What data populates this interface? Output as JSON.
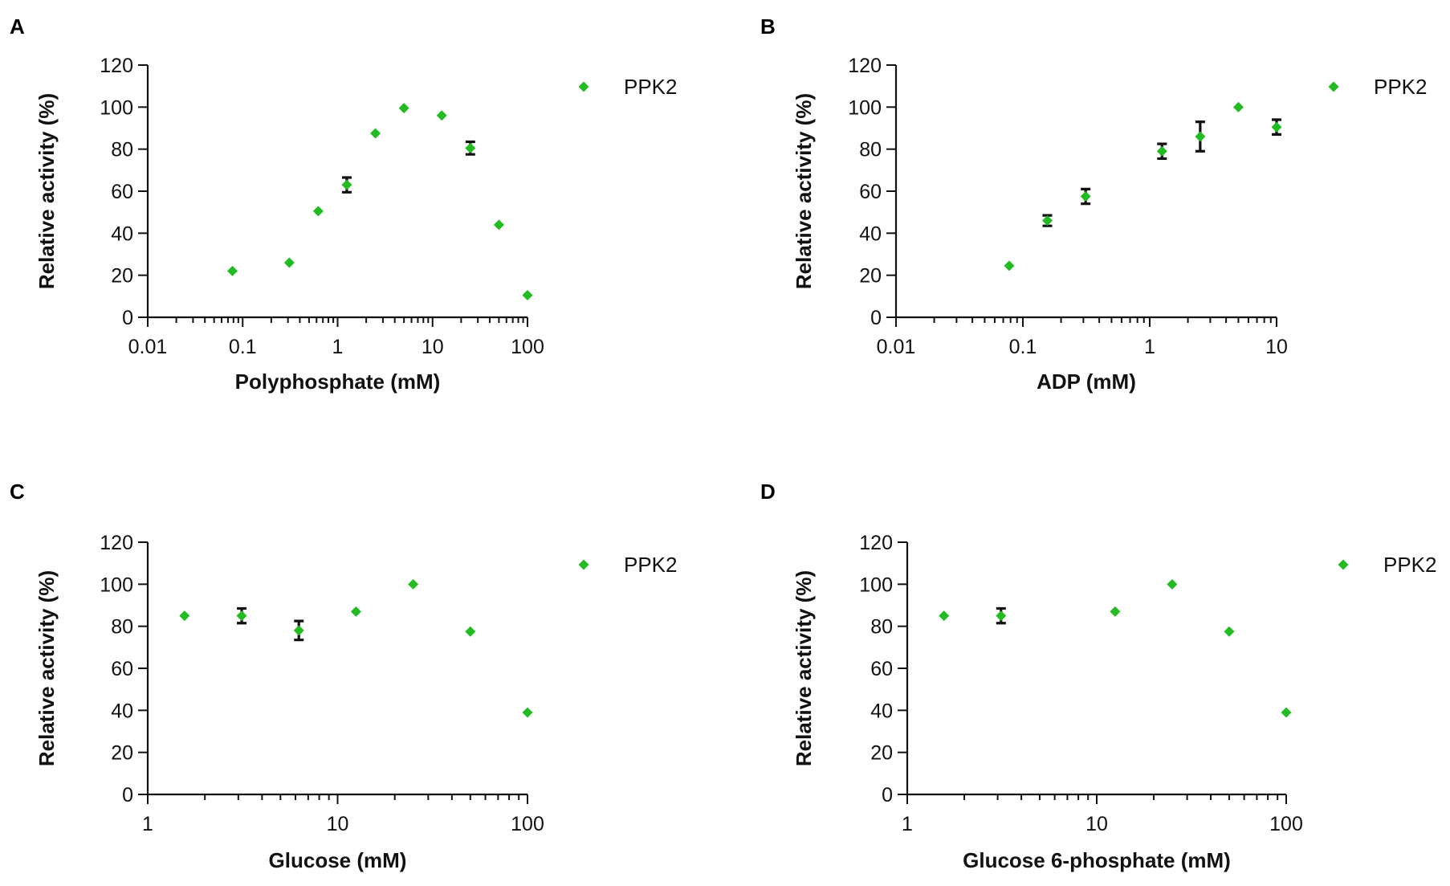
{
  "chart_data": [
    {
      "panel": "A",
      "type": "scatter",
      "xscale": "log",
      "xlabel": "Polyphosphate (mM)",
      "ylabel": "Relative activity (%)",
      "xlim": [
        0.01,
        100
      ],
      "ylim": [
        0,
        120
      ],
      "xticks": [
        0.01,
        0.1,
        1,
        10,
        100
      ],
      "xtick_labels": [
        "0.01",
        "0.1",
        "1",
        "10",
        "100"
      ],
      "yticks": [
        0,
        20,
        40,
        60,
        80,
        100,
        120
      ],
      "ytick_labels": [
        "0",
        "20",
        "40",
        "60",
        "80",
        "100",
        "120"
      ],
      "legend": "top-right",
      "series": [
        {
          "name": "PPK2",
          "color": "#22bb22",
          "marker": "diamond",
          "x": [
            0.078,
            0.31,
            0.625,
            1.25,
            2.5,
            5,
            12.5,
            25,
            50,
            100
          ],
          "y": [
            22,
            26,
            50.5,
            63,
            87.5,
            99.5,
            96,
            80.5,
            44,
            10.5
          ],
          "err": [
            0,
            0,
            0,
            3.5,
            0,
            0,
            0,
            3,
            0,
            0
          ]
        }
      ]
    },
    {
      "panel": "B",
      "type": "scatter",
      "xscale": "log",
      "xlabel": "ADP (mM)",
      "ylabel": "Relative activity (%)",
      "xlim": [
        0.01,
        10
      ],
      "ylim": [
        0,
        120
      ],
      "xticks": [
        0.01,
        0.1,
        1,
        10
      ],
      "xtick_labels": [
        "0.01",
        "0.1",
        "1",
        "10"
      ],
      "yticks": [
        0,
        20,
        40,
        60,
        80,
        100,
        120
      ],
      "ytick_labels": [
        "0",
        "20",
        "40",
        "60",
        "80",
        "100",
        "120"
      ],
      "legend": "top-right",
      "series": [
        {
          "name": "PPK2",
          "color": "#22bb22",
          "marker": "diamond",
          "x": [
            0.078,
            0.156,
            0.3125,
            1.25,
            2.5,
            5,
            10
          ],
          "y": [
            24.5,
            46,
            57.5,
            79,
            86,
            100,
            90.5
          ],
          "err": [
            0,
            2.5,
            3.5,
            3.5,
            7,
            0,
            3.5
          ]
        }
      ]
    },
    {
      "panel": "C",
      "type": "scatter",
      "xscale": "log",
      "xlabel": "Glucose (mM)",
      "ylabel": "Relative activity (%)",
      "xlim": [
        1,
        100
      ],
      "ylim": [
        0,
        120
      ],
      "xticks": [
        1,
        10,
        100
      ],
      "xtick_labels": [
        "1",
        "10",
        "100"
      ],
      "yticks": [
        0,
        20,
        40,
        60,
        80,
        100,
        120
      ],
      "ytick_labels": [
        "0",
        "20",
        "40",
        "60",
        "80",
        "100",
        "120"
      ],
      "legend": "top-right",
      "series": [
        {
          "name": "PPK2",
          "color": "#22bb22",
          "marker": "diamond",
          "x": [
            1.5625,
            3.125,
            6.25,
            12.5,
            25,
            50,
            100
          ],
          "y": [
            85,
            85,
            78,
            87,
            100,
            77.5,
            39
          ],
          "err": [
            0,
            3.5,
            4.5,
            0,
            0,
            0,
            0
          ]
        }
      ]
    },
    {
      "panel": "D",
      "type": "scatter",
      "xscale": "log",
      "xlabel": "Glucose 6-phosphate (mM)",
      "ylabel": "Relative activity (%)",
      "xlim": [
        1,
        100
      ],
      "ylim": [
        0,
        120
      ],
      "xticks": [
        1,
        10,
        100
      ],
      "xtick_labels": [
        "1",
        "10",
        "100"
      ],
      "yticks": [
        0,
        20,
        40,
        60,
        80,
        100,
        120
      ],
      "ytick_labels": [
        "0",
        "20",
        "40",
        "60",
        "80",
        "100",
        "120"
      ],
      "legend": "top-right",
      "series": [
        {
          "name": "PPK2",
          "color": "#22bb22",
          "marker": "diamond",
          "x": [
            1.5625,
            3.125,
            12.5,
            25,
            50,
            100
          ],
          "y": [
            85,
            85,
            87,
            100,
            77.5,
            39
          ],
          "err": [
            0,
            3.5,
            0,
            0,
            0,
            0
          ]
        }
      ]
    }
  ]
}
